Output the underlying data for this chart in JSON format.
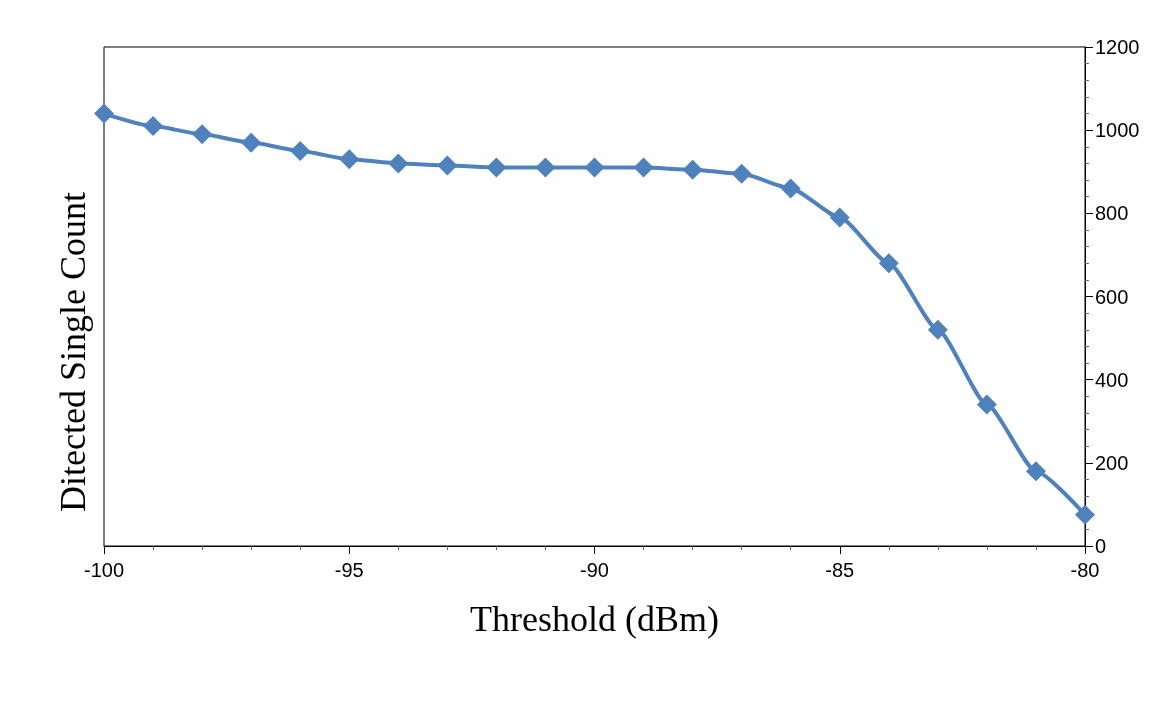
{
  "chart_data": {
    "type": "line",
    "xlabel": "Threshold (dBm)",
    "ylabel": "Ditected Single Count",
    "x": [
      -100,
      -99,
      -98,
      -97,
      -96,
      -95,
      -94,
      -93,
      -92,
      -91,
      -90,
      -89,
      -88,
      -87,
      -86,
      -85,
      -84,
      -83,
      -82,
      -81,
      -80
    ],
    "series": [
      {
        "color": "#4f81bd",
        "values": [
          1040,
          1010,
          990,
          970,
          950,
          930,
          920,
          915,
          910,
          910,
          910,
          910,
          905,
          895,
          860,
          790,
          680,
          520,
          340,
          180,
          75
        ]
      }
    ],
    "xlim": [
      -100,
      -80
    ],
    "xticks": [
      -100,
      -95,
      -90,
      -85,
      -80
    ],
    "ylim": [
      0,
      1200
    ],
    "yticks": [
      0,
      200,
      400,
      600,
      800,
      1000,
      1200
    ],
    "marker": "diamond",
    "line_style": "solid",
    "grid": false
  }
}
